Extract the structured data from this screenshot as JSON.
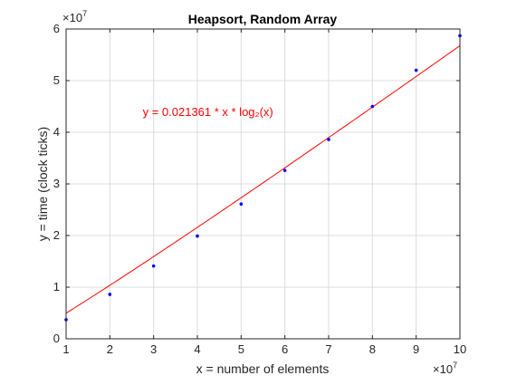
{
  "chart_data": {
    "type": "scatter",
    "title": "Heapsort, Random Array",
    "xlabel": "x = number of elements",
    "ylabel": "y = time (clock ticks)",
    "xlim": [
      1,
      10
    ],
    "ylim": [
      0,
      6
    ],
    "x_multiplier_label": "×10",
    "x_multiplier_exp": "7",
    "y_multiplier_label": "×10",
    "y_multiplier_exp": "7",
    "xticks": [
      1,
      2,
      3,
      4,
      5,
      6,
      7,
      8,
      9,
      10
    ],
    "yticks": [
      0,
      1,
      2,
      3,
      4,
      5,
      6
    ],
    "grid": true,
    "series": [
      {
        "kind": "points",
        "color": "#0000ff",
        "x": [
          1,
          2,
          3,
          4,
          5,
          6,
          7,
          8,
          9,
          10
        ],
        "y": [
          0.37,
          0.86,
          1.41,
          1.99,
          2.61,
          3.26,
          3.86,
          4.5,
          5.2,
          5.87
        ]
      },
      {
        "kind": "fit",
        "color": "#ff0000",
        "coefficient": 0.021361,
        "units_scale": 10000000,
        "x_start": 1,
        "x_end": 10
      }
    ],
    "annotation": {
      "text": "y = 0.021361 * x * log₂(x)",
      "color": "#ff0000",
      "x": 2.75,
      "y": 4.32
    }
  }
}
